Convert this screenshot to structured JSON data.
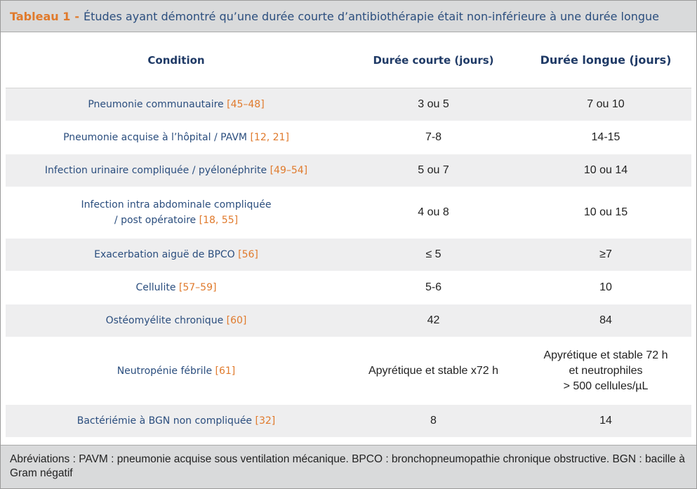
{
  "caption": {
    "label": "Tableau 1",
    "separator": "-",
    "title": "Études ayant démontré qu’une durée courte d’antibiothérapie était non-inférieure à une durée longue"
  },
  "table": {
    "headers": [
      "Condition",
      "Durée courte (jours)",
      "Durée longue (jours)"
    ],
    "rows": [
      {
        "condition": "Pneumonie communautaire",
        "ref": "[45–48]",
        "short": "3 ou 5",
        "long": "7 ou 10"
      },
      {
        "condition": "Pneumonie acquise à l’hôpital / PAVM",
        "ref": "[12, 21]",
        "short": "7-8",
        "long": "14-15"
      },
      {
        "condition": "Infection urinaire compliquée / pyélonéphrite",
        "ref": "[49–54]",
        "short": "5 ou 7",
        "long": "10 ou 14"
      },
      {
        "condition": "Infection intra abdominale compliquée\n/ post opératoire",
        "ref": "[18, 55]",
        "short": "4 ou 8",
        "long": "10 ou 15"
      },
      {
        "condition": "Exacerbation aiguë de BPCO",
        "ref": "[56]",
        "short": "≤ 5",
        "long": "≥7"
      },
      {
        "condition": "Cellulite",
        "ref": "[57–59]",
        "short": "5-6",
        "long": "10"
      },
      {
        "condition": "Ostéomyélite chronique",
        "ref": "[60]",
        "short": "42",
        "long": "84"
      },
      {
        "condition": "Neutropénie fébrile",
        "ref": "[61]",
        "short": "Apyrétique et stable x72 h",
        "long": "Apyrétique et stable 72 h\net neutrophiles\n> 500 cellules/µL"
      },
      {
        "condition": "Bactériémie à BGN non compliquée",
        "ref": "[32]",
        "short": "8",
        "long": "14"
      }
    ]
  },
  "footnote": "Abréviations : PAVM : pneumonie acquise sous ventilation mécanique. BPCO : bronchopneumopathie chronique obstructive. BGN : bacille à Gram négatif",
  "colors": {
    "accent": "#e07a2c",
    "navy": "#2b4e7e",
    "header_text": "#1f3a66",
    "band": "#d9dadb",
    "row_shade": "#eeeeef"
  }
}
